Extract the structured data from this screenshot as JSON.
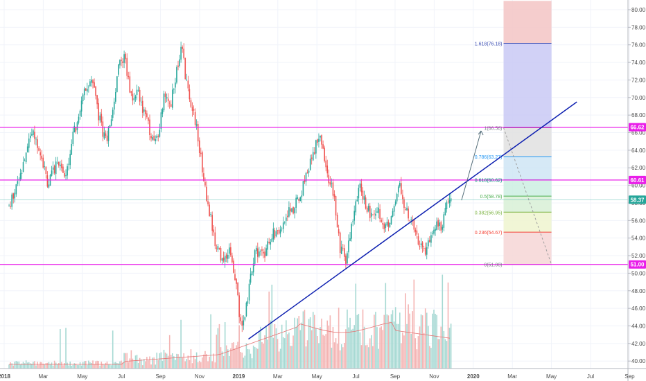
{
  "chart_data": {
    "type": "candlestick",
    "y_axis": {
      "ticks": [
        "80.00",
        "78.00",
        "76.00",
        "74.00",
        "72.00",
        "70.00",
        "68.00",
        "66.00",
        "64.00",
        "62.00",
        "60.00",
        "58.00",
        "56.00",
        "54.00",
        "52.00",
        "50.00",
        "48.00",
        "46.00",
        "44.00",
        "42.00",
        "40.00"
      ],
      "ylim": [
        39.5,
        81.0
      ]
    },
    "x_axis": {
      "ticks": [
        "2018",
        "Mar",
        "May",
        "Jul",
        "Sep",
        "Nov",
        "2019",
        "Mar",
        "May",
        "Jul",
        "Sep",
        "Nov",
        "2020",
        "Mar",
        "May",
        "Jul",
        "Sep"
      ]
    },
    "price_badges": [
      {
        "label": "66.62",
        "value": 66.62,
        "color": "#e91ee9"
      },
      {
        "label": "60.61",
        "value": 60.61,
        "color": "#e91ee9"
      },
      {
        "label": "58.37",
        "value": 58.37,
        "color": "#26a69a"
      },
      {
        "label": "51.00",
        "value": 51.0,
        "color": "#e91ee9"
      }
    ],
    "horizontal_lines": [
      66.62,
      60.61,
      51.0
    ],
    "last_price": 58.37,
    "fibonacci": [
      {
        "label": "1.618(76.18)",
        "value": 76.18,
        "color": "#3f51b5"
      },
      {
        "label": "1(66.56)",
        "value": 66.56,
        "color": "#787b86"
      },
      {
        "label": "0.786(63.27)",
        "value": 63.27,
        "color": "#2196f3"
      },
      {
        "label": "0.618(60.62)",
        "value": 60.62,
        "color": "#00897b"
      },
      {
        "label": "0.5(58.78)",
        "value": 58.78,
        "color": "#4caf50"
      },
      {
        "label": "0.382(56.95)",
        "value": 56.95,
        "color": "#7cb342"
      },
      {
        "label": "0.236(54.67)",
        "value": 54.67,
        "color": "#f44336"
      },
      {
        "label": "0(51.00)",
        "value": 51.0,
        "color": "#787b86"
      }
    ],
    "fib_zones": [
      {
        "from": 76.18,
        "to": 81.0,
        "color": "#f3c4c4"
      },
      {
        "from": 66.56,
        "to": 76.18,
        "color": "#c9c9f4"
      },
      {
        "from": 63.27,
        "to": 66.56,
        "color": "#e0e0e0"
      },
      {
        "from": 60.62,
        "to": 63.27,
        "color": "#cfe5f5"
      },
      {
        "from": 58.78,
        "to": 60.62,
        "color": "#cdeee2"
      },
      {
        "from": 56.95,
        "to": 58.78,
        "color": "#d8f0d6"
      },
      {
        "from": 54.67,
        "to": 56.95,
        "color": "#eef5cf"
      },
      {
        "from": 51.0,
        "to": 54.67,
        "color": "#f6d6d6"
      }
    ],
    "trendline": {
      "from": [
        "Jan 2019",
        42.5
      ],
      "to": [
        "Jun 2020",
        69.5
      ],
      "color": "#0d1fb0"
    },
    "price_path": [
      [
        "Jan 2018",
        57.5
      ],
      [
        "Jan 2018",
        60.5
      ],
      [
        "Feb 2018",
        64.0
      ],
      [
        "Feb 2018",
        66.3
      ],
      [
        "Feb 2018",
        64.0
      ],
      [
        "Mar 2018",
        60.0
      ],
      [
        "Mar 2018",
        63.0
      ],
      [
        "Apr 2018",
        61.0
      ],
      [
        "Apr 2018",
        65.5
      ],
      [
        "Apr 2018",
        68.0
      ],
      [
        "May 2018",
        71.0
      ],
      [
        "May 2018",
        72.0
      ],
      [
        "May 2018",
        68.0
      ],
      [
        "Jun 2018",
        65.0
      ],
      [
        "Jun 2018",
        67.0
      ],
      [
        "Jun 2018",
        74.0
      ],
      [
        "Jul 2018",
        74.5
      ],
      [
        "Jul 2018",
        70.0
      ],
      [
        "Jul 2018",
        70.5
      ],
      [
        "Aug 2018",
        68.0
      ],
      [
        "Aug 2018",
        66.0
      ],
      [
        "Aug 2018",
        65.0
      ],
      [
        "Sep 2018",
        70.0
      ],
      [
        "Sep 2018",
        69.0
      ],
      [
        "Sep 2018",
        73.0
      ],
      [
        "Oct 2018",
        76.0
      ],
      [
        "Oct 2018",
        72.0
      ],
      [
        "Oct 2018",
        70.0
      ],
      [
        "Oct 2018",
        68.0
      ],
      [
        "Oct 2018",
        66.0
      ],
      [
        "Nov 2018",
        61.0
      ],
      [
        "Nov 2018",
        57.0
      ],
      [
        "Nov 2018",
        53.0
      ],
      [
        "Dec 2018",
        51.5
      ],
      [
        "Dec 2018",
        52.5
      ],
      [
        "Dec 2018",
        49.5
      ],
      [
        "Jan 2019",
        43.5
      ],
      [
        "Jan 2019",
        46.0
      ],
      [
        "Jan 2019",
        50.0
      ],
      [
        "Jan 2019",
        52.5
      ],
      [
        "Feb 2019",
        52.0
      ],
      [
        "Feb 2019",
        54.5
      ],
      [
        "Mar 2019",
        55.0
      ],
      [
        "Mar 2019",
        57.0
      ],
      [
        "Mar 2019",
        57.5
      ],
      [
        "Apr 2019",
        59.0
      ],
      [
        "Apr 2019",
        61.5
      ],
      [
        "Apr 2019",
        64.0
      ],
      [
        "May 2019",
        65.5
      ],
      [
        "May 2019",
        63.0
      ],
      [
        "May 2019",
        60.5
      ],
      [
        "May 2019",
        59.0
      ],
      [
        "Jun 2019",
        53.0
      ],
      [
        "Jun 2019",
        51.5
      ],
      [
        "Jun 2019",
        56.0
      ],
      [
        "Jul 2019",
        60.0
      ],
      [
        "Jul 2019",
        58.0
      ],
      [
        "Jul 2019",
        56.0
      ],
      [
        "Aug 2019",
        57.0
      ],
      [
        "Aug 2019",
        55.0
      ],
      [
        "Aug 2019",
        56.5
      ],
      [
        "Sep 2019",
        60.5
      ],
      [
        "Sep 2019",
        57.5
      ],
      [
        "Sep 2019",
        56.0
      ],
      [
        "Oct 2019",
        53.5
      ],
      [
        "Oct 2019",
        52.5
      ],
      [
        "Oct 2019",
        54.0
      ],
      [
        "Nov 2019",
        55.5
      ],
      [
        "Nov 2019",
        55.0
      ],
      [
        "Nov 2019",
        57.5
      ],
      [
        "Nov 2019",
        58.4
      ]
    ]
  }
}
